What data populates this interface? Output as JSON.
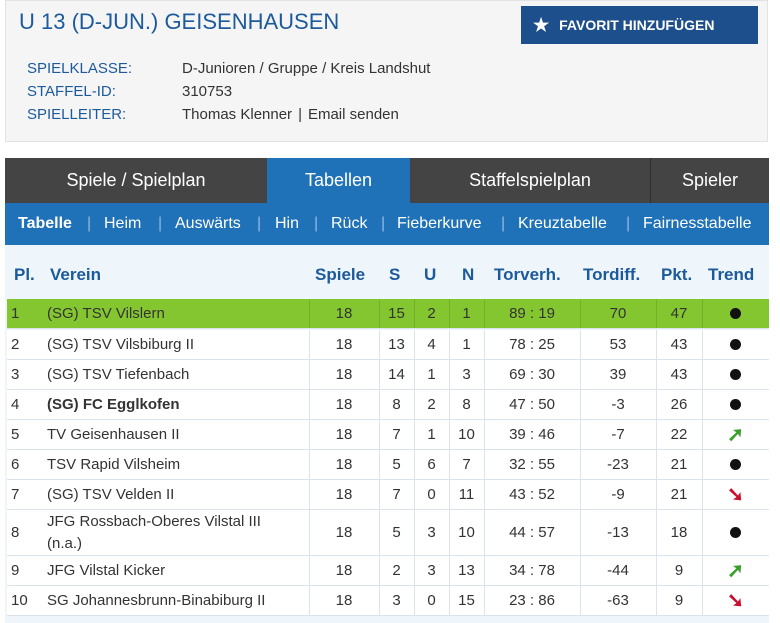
{
  "header": {
    "title": "U 13 (D-JUN.) GEISENHAUSEN",
    "favorite_label": "FAVORIT HINZUFÜGEN",
    "spielklasse_label": "SPIELKLASSE:",
    "spielklasse_value": "D-Junioren / Gruppe / Kreis Landshut",
    "staffel_label": "STAFFEL-ID:",
    "staffel_value": "310753",
    "spielleiter_label": "SPIELLEITER:",
    "spielleiter_name": "Thomas Klenner",
    "spielleiter_sep": "|",
    "spielleiter_email": "Email senden"
  },
  "tabs": [
    "Spiele / Spielplan",
    "Tabellen",
    "Staffelspielplan",
    "Spieler"
  ],
  "subnav": [
    "Tabelle",
    "Heim",
    "Auswärts",
    "Hin",
    "Rück",
    "Fieberkurve",
    "Kreuztabelle",
    "Fairnesstabelle"
  ],
  "subnav_sep": "|",
  "columns": {
    "pl": "Pl.",
    "verein": "Verein",
    "spiele": "Spiele",
    "s": "S",
    "u": "U",
    "n": "N",
    "torverh": "Torverh.",
    "tordiff": "Tordiff.",
    "pkt": "Pkt.",
    "trend": "Trend"
  },
  "rows": [
    {
      "pl": "1",
      "verein": "(SG) TSV Vilslern",
      "spiele": "18",
      "s": "15",
      "u": "2",
      "n": "1",
      "torverh": "89 : 19",
      "tordiff": "70",
      "pkt": "47",
      "trend": "same"
    },
    {
      "pl": "2",
      "verein": "(SG) TSV Vilsbiburg II",
      "spiele": "18",
      "s": "13",
      "u": "4",
      "n": "1",
      "torverh": "78 : 25",
      "tordiff": "53",
      "pkt": "43",
      "trend": "same"
    },
    {
      "pl": "3",
      "verein": "(SG) TSV Tiefenbach",
      "spiele": "18",
      "s": "14",
      "u": "1",
      "n": "3",
      "torverh": "69 : 30",
      "tordiff": "39",
      "pkt": "43",
      "trend": "same"
    },
    {
      "pl": "4",
      "verein": "(SG) FC Egglkofen",
      "spiele": "18",
      "s": "8",
      "u": "2",
      "n": "8",
      "torverh": "47 : 50",
      "tordiff": "-3",
      "pkt": "26",
      "trend": "same"
    },
    {
      "pl": "5",
      "verein": "TV Geisenhausen II",
      "spiele": "18",
      "s": "7",
      "u": "1",
      "n": "10",
      "torverh": "39 : 46",
      "tordiff": "-7",
      "pkt": "22",
      "trend": "up"
    },
    {
      "pl": "6",
      "verein": "TSV Rapid Vilsheim",
      "spiele": "18",
      "s": "5",
      "u": "6",
      "n": "7",
      "torverh": "32 : 55",
      "tordiff": "-23",
      "pkt": "21",
      "trend": "same"
    },
    {
      "pl": "7",
      "verein": "(SG) TSV Velden II",
      "spiele": "18",
      "s": "7",
      "u": "0",
      "n": "11",
      "torverh": "43 : 52",
      "tordiff": "-9",
      "pkt": "21",
      "trend": "down"
    },
    {
      "pl": "8",
      "verein": "JFG Rossbach-Oberes Vilstal III (n.a.)",
      "spiele": "18",
      "s": "5",
      "u": "3",
      "n": "10",
      "torverh": "44 : 57",
      "tordiff": "-13",
      "pkt": "18",
      "trend": "same"
    },
    {
      "pl": "9",
      "verein": "JFG Vilstal Kicker",
      "spiele": "18",
      "s": "2",
      "u": "3",
      "n": "13",
      "torverh": "34 : 78",
      "tordiff": "-44",
      "pkt": "9",
      "trend": "up"
    },
    {
      "pl": "10",
      "verein": "SG Johannesbrunn-Binabiburg II",
      "spiele": "18",
      "s": "3",
      "u": "0",
      "n": "15",
      "torverh": "23 : 86",
      "tordiff": "-63",
      "pkt": "9",
      "trend": "down"
    }
  ],
  "colors": {
    "accent": "#1f71b8",
    "title": "#1c5a9c",
    "highlight": "#84c630",
    "trend_up": "#3a9e2b",
    "trend_down": "#c8102e"
  },
  "icons": {
    "favorite": "star-icon",
    "trend_same": "dot-icon",
    "trend_up": "arrow-up-right-icon",
    "trend_down": "arrow-down-right-icon"
  }
}
